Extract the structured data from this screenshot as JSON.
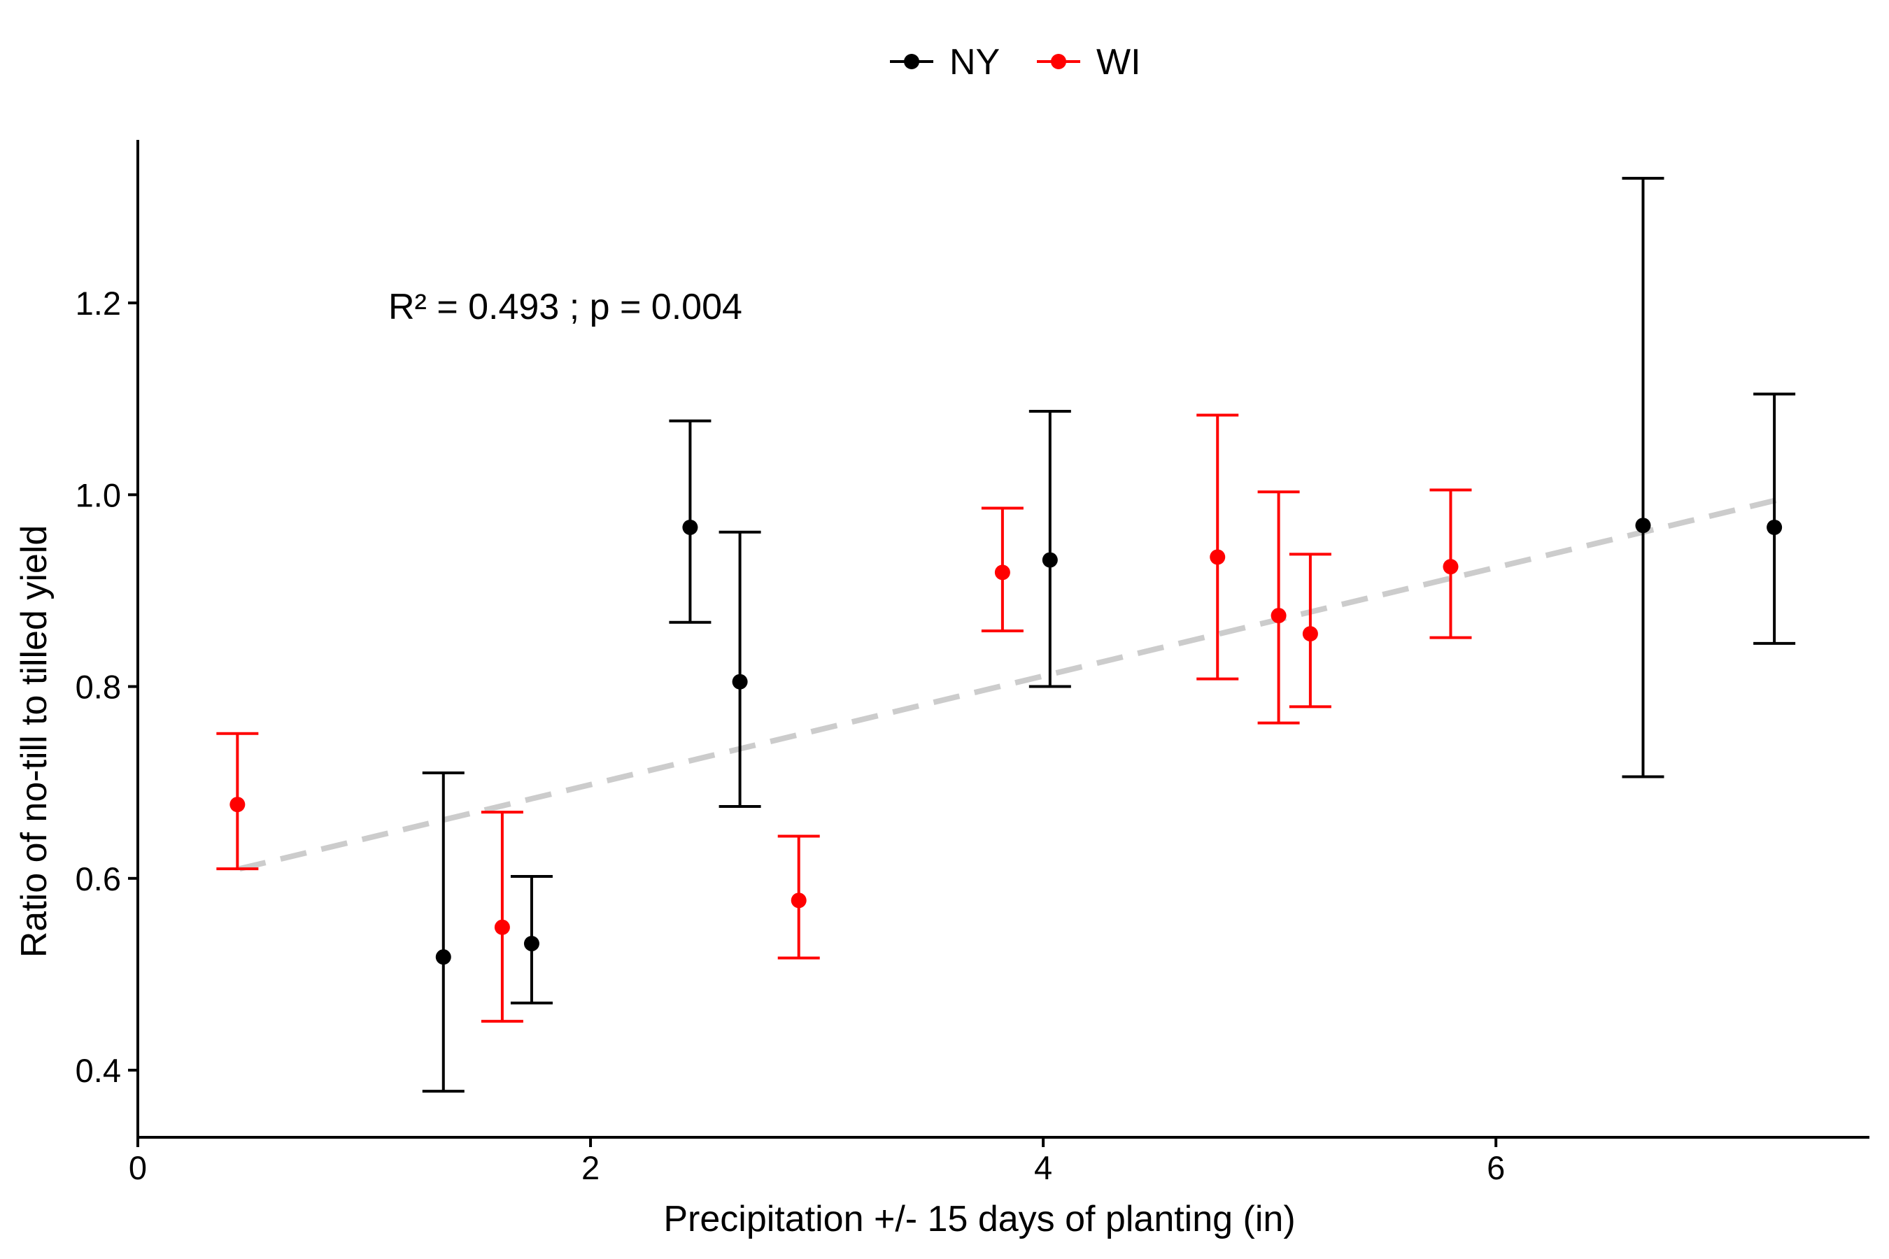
{
  "chart_data": {
    "type": "scatter",
    "xlabel": "Precipitation +/- 15 days of planting (in)",
    "ylabel": "Ratio of no-till to tilled yield",
    "xlim": [
      0,
      7.65
    ],
    "ylim": [
      0.33,
      1.37
    ],
    "x_ticks": [
      0,
      2,
      4,
      6
    ],
    "y_ticks": [
      0.4,
      0.6,
      0.8,
      1.0,
      1.2
    ],
    "x_tick_labels": [
      "0",
      "2",
      "4",
      "6"
    ],
    "y_tick_labels": [
      "0.4",
      "0.6",
      "0.8",
      "1.0",
      "1.2"
    ],
    "grid": false,
    "legend_position": "top",
    "annotation": "R² = 0.493 ; p = 0.004",
    "trendline": {
      "style": "dashed",
      "color": "#cccccc",
      "x": [
        0.45,
        7.25
      ],
      "y": [
        0.61,
        0.995
      ]
    },
    "series": [
      {
        "name": "NY",
        "color": "#000000",
        "points": [
          {
            "x": 1.35,
            "y": 0.518,
            "ymin": 0.378,
            "ymax": 0.71
          },
          {
            "x": 1.74,
            "y": 0.532,
            "ymin": 0.47,
            "ymax": 0.602
          },
          {
            "x": 2.44,
            "y": 0.966,
            "ymin": 0.867,
            "ymax": 1.077
          },
          {
            "x": 2.66,
            "y": 0.805,
            "ymin": 0.675,
            "ymax": 0.961
          },
          {
            "x": 4.03,
            "y": 0.932,
            "ymin": 0.8,
            "ymax": 1.087
          },
          {
            "x": 6.65,
            "y": 0.968,
            "ymin": 0.706,
            "ymax": 1.33
          },
          {
            "x": 7.23,
            "y": 0.966,
            "ymin": 0.845,
            "ymax": 1.105
          }
        ]
      },
      {
        "name": "WI",
        "color": "#ff0000",
        "points": [
          {
            "x": 0.44,
            "y": 0.677,
            "ymin": 0.61,
            "ymax": 0.751
          },
          {
            "x": 1.61,
            "y": 0.549,
            "ymin": 0.451,
            "ymax": 0.669
          },
          {
            "x": 2.92,
            "y": 0.577,
            "ymin": 0.517,
            "ymax": 0.644
          },
          {
            "x": 3.82,
            "y": 0.919,
            "ymin": 0.858,
            "ymax": 0.986
          },
          {
            "x": 4.77,
            "y": 0.935,
            "ymin": 0.808,
            "ymax": 1.083
          },
          {
            "x": 5.04,
            "y": 0.874,
            "ymin": 0.762,
            "ymax": 1.003
          },
          {
            "x": 5.18,
            "y": 0.855,
            "ymin": 0.779,
            "ymax": 0.938
          },
          {
            "x": 5.8,
            "y": 0.925,
            "ymin": 0.851,
            "ymax": 1.005
          }
        ]
      }
    ]
  }
}
